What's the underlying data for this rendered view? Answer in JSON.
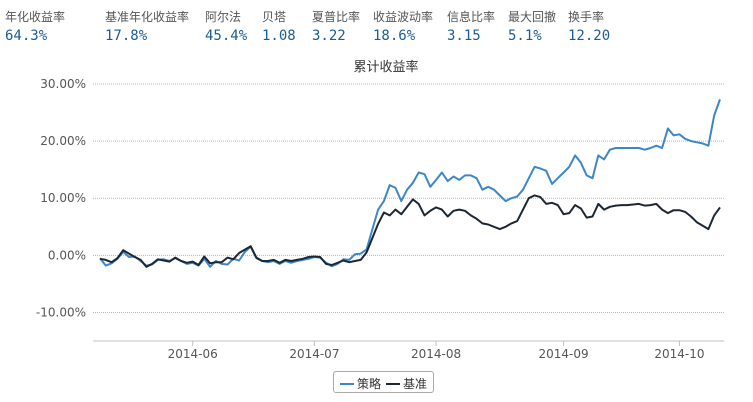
{
  "metrics": [
    {
      "label": "年化收益率",
      "value": "64.3%"
    },
    {
      "label": "基准年化收益率",
      "value": "17.8%"
    },
    {
      "label": "阿尔法",
      "value": "45.4%"
    },
    {
      "label": "贝塔",
      "value": "1.08"
    },
    {
      "label": "夏普比率",
      "value": "3.22"
    },
    {
      "label": "收益波动率",
      "value": "18.6%"
    },
    {
      "label": "信息比率",
      "value": "3.15"
    },
    {
      "label": "最大回撤",
      "value": "5.1%"
    },
    {
      "label": "换手率",
      "value": "12.20"
    }
  ],
  "chart_data": {
    "type": "line",
    "title": "累计收益率",
    "ylim": [
      -15,
      30
    ],
    "y_ticks": [
      "30.00%",
      "20.00%",
      "10.00%",
      "0.00%",
      "-10.00%"
    ],
    "y_tick_values": [
      30,
      20,
      10,
      0,
      -10
    ],
    "x_ticks": [
      "2014-06",
      "2014-07",
      "2014-08",
      "2014-09",
      "2014-10"
    ],
    "x_tick_index": [
      16,
      37,
      58,
      80,
      100
    ],
    "grid": true,
    "legend_position": "bottom-center",
    "series": [
      {
        "name": "策略",
        "color": "#3d86c8",
        "values": [
          -0.5,
          -1.8,
          -1.4,
          -0.6,
          0.6,
          -0.3,
          -0.2,
          -1.0,
          -1.8,
          -1.6,
          -0.8,
          -0.7,
          -1.0,
          -0.5,
          -1.0,
          -1.5,
          -1.3,
          -1.8,
          -0.6,
          -2.0,
          -1.0,
          -1.5,
          -1.6,
          -0.6,
          -0.9,
          0.6,
          1.5,
          -0.5,
          -1.0,
          -1.2,
          -1.0,
          -1.5,
          -1.0,
          -1.3,
          -1.0,
          -0.8,
          -0.6,
          -0.3,
          -0.4,
          -1.3,
          -1.9,
          -1.5,
          -0.7,
          -0.8,
          0.2,
          0.3,
          1.0,
          4.5,
          8.0,
          9.5,
          12.3,
          11.8,
          9.5,
          11.5,
          12.7,
          14.5,
          14.2,
          12.0,
          13.2,
          14.5,
          13.0,
          13.8,
          13.2,
          14.0,
          14.0,
          13.5,
          11.5,
          12.0,
          11.5,
          10.5,
          9.5,
          10.0,
          10.3,
          11.5,
          13.5,
          15.5,
          15.2,
          14.8,
          12.5,
          13.5,
          14.5,
          15.5,
          17.5,
          16.2,
          14.0,
          13.5,
          17.5,
          16.8,
          18.5,
          18.8,
          18.8,
          18.8,
          18.8,
          18.8,
          18.5,
          18.8,
          19.2,
          18.8,
          22.2,
          21.0,
          21.2,
          20.4,
          20.0,
          19.8,
          19.6,
          19.2,
          24.5,
          27.3
        ]
      },
      {
        "name": "基准",
        "color": "#1c2734",
        "values": [
          -0.6,
          -0.8,
          -1.2,
          -0.5,
          0.9,
          0.3,
          -0.3,
          -0.8,
          -2.0,
          -1.5,
          -0.7,
          -0.9,
          -1.1,
          -0.4,
          -1.0,
          -1.3,
          -1.1,
          -1.7,
          -0.2,
          -1.4,
          -1.2,
          -1.2,
          -0.4,
          -0.7,
          0.4,
          1.0,
          1.6,
          -0.4,
          -1.0,
          -1.0,
          -0.8,
          -1.3,
          -0.8,
          -1.0,
          -0.8,
          -0.6,
          -0.3,
          -0.2,
          -0.3,
          -1.5,
          -1.7,
          -1.3,
          -0.9,
          -1.2,
          -1.0,
          -0.8,
          0.5,
          3.0,
          5.5,
          7.5,
          7.0,
          8.0,
          7.2,
          8.5,
          9.8,
          9.0,
          7.0,
          7.8,
          8.4,
          8.0,
          6.8,
          7.8,
          8.0,
          7.8,
          7.0,
          6.4,
          5.6,
          5.4,
          5.0,
          4.6,
          5.0,
          5.6,
          6.0,
          8.0,
          10.0,
          10.5,
          10.2,
          9.0,
          9.2,
          8.8,
          7.2,
          7.4,
          8.8,
          8.2,
          6.6,
          6.8,
          9.0,
          8.0,
          8.5,
          8.7,
          8.8,
          8.8,
          8.9,
          9.0,
          8.7,
          8.8,
          9.0,
          8.0,
          7.4,
          7.9,
          7.9,
          7.6,
          6.8,
          5.8,
          5.2,
          4.6,
          7.0,
          8.4
        ]
      }
    ]
  }
}
